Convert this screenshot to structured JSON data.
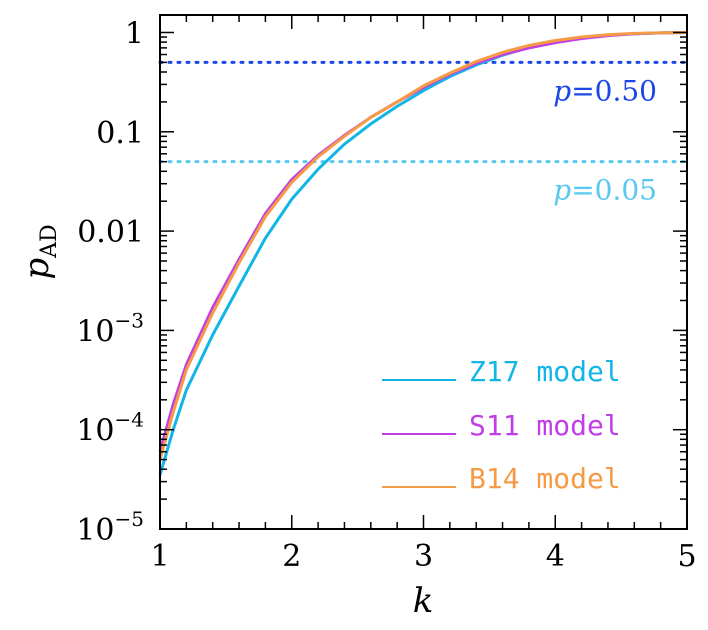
{
  "chart_data": {
    "type": "line",
    "xlabel": "k",
    "ylabel": {
      "main": "p",
      "sub": "AD"
    },
    "xlim": [
      1,
      5
    ],
    "ylim": [
      1e-05,
      1.5
    ],
    "yscale": "log",
    "grid": false,
    "legend_placement": "bottom-right",
    "x_ticks": [
      "1",
      "2",
      "3",
      "4",
      "5"
    ],
    "y_ticks": [
      {
        "value": 1,
        "base": "1",
        "exp": ""
      },
      {
        "value": 0.1,
        "base": "0.1",
        "exp": ""
      },
      {
        "value": 0.01,
        "base": "0.01",
        "exp": ""
      },
      {
        "value": 0.001,
        "base": "10",
        "exp": "−3"
      },
      {
        "value": 0.0001,
        "base": "10",
        "exp": "−4"
      },
      {
        "value": 1e-05,
        "base": "10",
        "exp": "−5"
      }
    ],
    "reference_lines": [
      {
        "y": 0.5,
        "label_italic": "p",
        "label_rest": "=0.50",
        "color": "#1a47e6"
      },
      {
        "y": 0.05,
        "label_italic": "p",
        "label_rest": "=0.05",
        "color": "#59c8f0"
      }
    ],
    "series": [
      {
        "name": "Z17 model",
        "color": "#12b6e6",
        "x": [
          1.0,
          1.1,
          1.2,
          1.4,
          1.6,
          1.8,
          2.0,
          2.2,
          2.4,
          2.6,
          2.8,
          3.0,
          3.2,
          3.4,
          3.6,
          3.8,
          4.0,
          4.2,
          4.4,
          4.6,
          4.8,
          5.0
        ],
        "y": [
          3.5e-05,
          0.0001,
          0.00025,
          0.0009,
          0.0028,
          0.0085,
          0.021,
          0.042,
          0.075,
          0.12,
          0.18,
          0.26,
          0.36,
          0.47,
          0.59,
          0.71,
          0.81,
          0.89,
          0.94,
          0.97,
          0.99,
          1.0
        ]
      },
      {
        "name": "S11 model",
        "color": "#c13ee6",
        "x": [
          1.0,
          1.1,
          1.2,
          1.4,
          1.6,
          1.8,
          2.0,
          2.2,
          2.4,
          2.6,
          2.8,
          3.0,
          3.2,
          3.4,
          3.6,
          3.8,
          4.0,
          4.2,
          4.4,
          4.6,
          4.8,
          5.0
        ],
        "y": [
          6e-05,
          0.00018,
          0.00045,
          0.0017,
          0.0052,
          0.015,
          0.033,
          0.058,
          0.092,
          0.14,
          0.2,
          0.28,
          0.38,
          0.49,
          0.6,
          0.7,
          0.79,
          0.87,
          0.93,
          0.97,
          0.99,
          1.0
        ]
      },
      {
        "name": "B14 model",
        "color": "#f59a45",
        "x": [
          1.0,
          1.1,
          1.2,
          1.4,
          1.6,
          1.8,
          2.0,
          2.2,
          2.4,
          2.6,
          2.8,
          3.0,
          3.2,
          3.4,
          3.6,
          3.8,
          4.0,
          4.2,
          4.4,
          4.6,
          4.8,
          5.0
        ],
        "y": [
          5e-05,
          0.00015,
          0.0004,
          0.0015,
          0.0048,
          0.014,
          0.031,
          0.056,
          0.09,
          0.14,
          0.2,
          0.29,
          0.39,
          0.51,
          0.63,
          0.74,
          0.83,
          0.9,
          0.95,
          0.98,
          0.99,
          1.0
        ]
      }
    ]
  }
}
